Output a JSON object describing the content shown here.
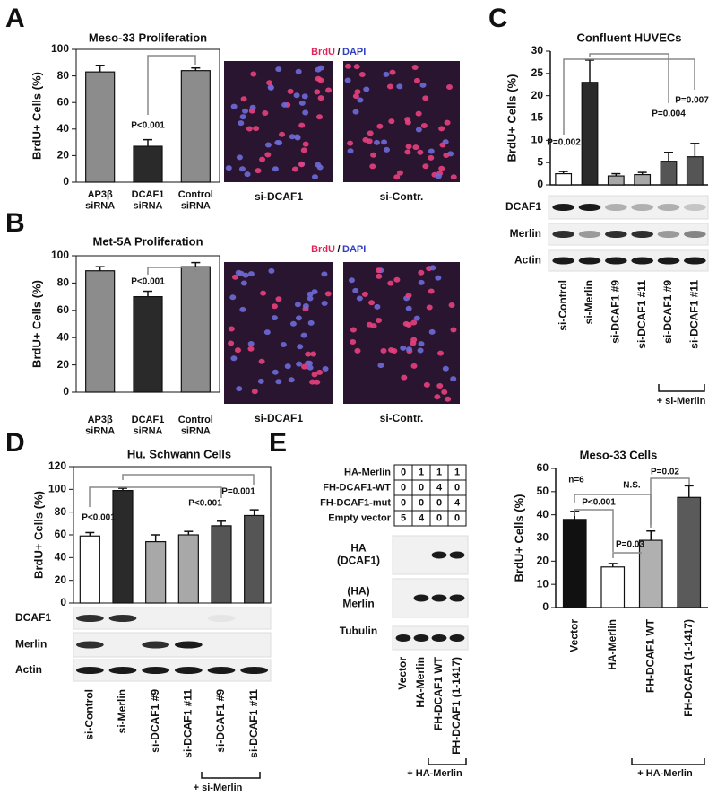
{
  "figure": {
    "panels": [
      "A",
      "B",
      "C",
      "D",
      "E"
    ],
    "images": [
      {
        "stain1": "BrdU",
        "sep": "/",
        "stain2": "DAPI",
        "captions": [
          "si-DCAF1",
          "si-Contr."
        ]
      },
      {
        "stain1": "BrdU",
        "sep": "/",
        "stain2": "DAPI",
        "captions": [
          "si-DCAF1",
          "si-Contr."
        ]
      }
    ],
    "blots": [
      {
        "panel": "C",
        "labels": [
          "DCAF1",
          "Merlin",
          "Actin"
        ]
      },
      {
        "panel": "D",
        "labels": [
          "DCAF1",
          "Merlin",
          "Actin"
        ]
      },
      {
        "panel": "E",
        "labels": [
          "HA\n(DCAF1)",
          "(HA)\nMerlin",
          "Tubulin"
        ]
      }
    ],
    "table": {
      "rows": [
        [
          "HA-Merlin",
          0,
          1,
          1,
          1
        ],
        [
          "FH-DCAF1-WT",
          0,
          0,
          4,
          0
        ],
        [
          "FH-DCAF1-mut",
          0,
          0,
          0,
          4
        ],
        [
          "Empty vector",
          5,
          4,
          0,
          0
        ]
      ]
    },
    "blot_lanes": [
      "Vector",
      "HA-Merlin",
      "FH-DCAF1 WT",
      "FH-DCAF1 (1-1417)"
    ],
    "blot_group_label": "+ HA-Merlin"
  },
  "chart_data": [
    {
      "type": "bar",
      "title": "Meso-33 Proliferation",
      "y_label": "BrdU+ Cells (%)",
      "categories": [
        "AP3β\nsiRNA",
        "DCAF1\nsiRNA",
        "Control\nsiRNA"
      ],
      "values": [
        83,
        27,
        84
      ],
      "errors": [
        5,
        5,
        2
      ],
      "colors": [
        "#8c8c8c",
        "#2a2a2a",
        "#8c8c8c"
      ],
      "ylim": [
        0,
        100
      ],
      "yticks": [
        0,
        20,
        40,
        60,
        80,
        100
      ],
      "annotations": [
        "P<0.001"
      ]
    },
    {
      "type": "bar",
      "title": "Met-5A Proliferation",
      "y_label": "BrdU+ Cells (%)",
      "categories": [
        "AP3β\nsiRNA",
        "DCAF1\nsiRNA",
        "Control\nsiRNA"
      ],
      "values": [
        89,
        70,
        92
      ],
      "errors": [
        3,
        4,
        3
      ],
      "colors": [
        "#8c8c8c",
        "#2a2a2a",
        "#8c8c8c"
      ],
      "ylim": [
        0,
        100
      ],
      "yticks": [
        0,
        20,
        40,
        60,
        80,
        100
      ],
      "annotations": [
        "P<0.001"
      ]
    },
    {
      "type": "bar",
      "title": "Confluent HUVECs",
      "y_label": "BrdU+ Cells (%)",
      "categories": [
        "si-Control",
        "si-Merlin",
        "si-DCAF1 #9",
        "si-DCAF1 #11",
        "si-DCAF1 #9",
        "si-DCAF1 #11"
      ],
      "values": [
        2.5,
        23,
        2,
        2.3,
        5.3,
        6.3
      ],
      "errors": [
        0.5,
        5,
        0.5,
        0.5,
        2,
        3
      ],
      "colors": [
        "#ffffff",
        "#2a2a2a",
        "#a8a8a8",
        "#a8a8a8",
        "#555555",
        "#555555"
      ],
      "ylim": [
        0,
        30
      ],
      "yticks": [
        0,
        5,
        10,
        15,
        20,
        25,
        30
      ],
      "annotations": [
        "P=0.002",
        "P=0.004",
        "P=0.007"
      ],
      "group_label": "+ si-Merlin"
    },
    {
      "type": "bar",
      "title": "Hu. Schwann Cells",
      "y_label": "BrdU+ Cells (%)",
      "categories": [
        "si-Control",
        "si-Merlin",
        "si-DCAF1 #9",
        "si-DCAF1 #11",
        "si-DCAF1 #9",
        "si-DCAF1 #11"
      ],
      "values": [
        59,
        99,
        54,
        60,
        68,
        77
      ],
      "errors": [
        3,
        2,
        6,
        3,
        4,
        5
      ],
      "colors": [
        "#ffffff",
        "#2a2a2a",
        "#a8a8a8",
        "#a8a8a8",
        "#555555",
        "#555555"
      ],
      "ylim": [
        0,
        120
      ],
      "yticks": [
        0,
        20,
        40,
        60,
        80,
        100,
        120
      ],
      "annotations": [
        "P<0.001",
        "P<0.001",
        "P=0.001"
      ],
      "group_label": "+ si-Merlin"
    },
    {
      "type": "bar",
      "title": "Meso-33 Cells",
      "y_label": "BrdU+ Cells (%)",
      "categories": [
        "Vector",
        "HA-Merlin",
        "FH-DCAF1 WT",
        "FH-DCAF1 (1-1417)"
      ],
      "values": [
        38,
        17.5,
        29,
        47.5
      ],
      "errors": [
        3.5,
        1.5,
        4,
        5
      ],
      "colors": [
        "#111111",
        "#ffffff",
        "#b0b0b0",
        "#5a5a5a"
      ],
      "ylim": [
        0,
        60
      ],
      "yticks": [
        0,
        10,
        20,
        30,
        40,
        50,
        60
      ],
      "annotations": [
        "n=6",
        "P<0.001",
        "N.S.",
        "P=0.03",
        "P=0.02"
      ],
      "group_label": "+ HA-Merlin"
    }
  ]
}
